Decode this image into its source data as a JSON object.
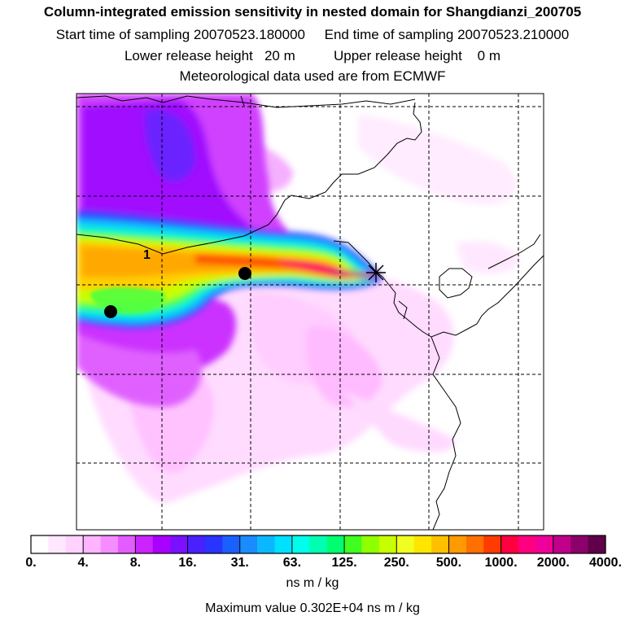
{
  "title": {
    "line1": "Column-integrated emission sensitivity in nested domain for Shangdianzi_200705",
    "line2": "Start time of sampling 20070523.180000     End time of sampling 20070523.210000",
    "line3": "Lower release height   20 m          Upper release height    0 m",
    "line4": "Meteorological data used are from ECMWF"
  },
  "map": {
    "contour_label": "1",
    "markers": [
      "receptor-star",
      "release-dot",
      "release-dot"
    ]
  },
  "colorbar": {
    "ticks": [
      "0.",
      "4.",
      "8.",
      "16.",
      "31.",
      "63.",
      "125.",
      "250.",
      "500.",
      "1000.",
      "2000.",
      "4000."
    ],
    "unit": "ns m / kg",
    "colors": [
      "#ffffff",
      "#ffe8ff",
      "#ffd2ff",
      "#ffb4ff",
      "#f58cff",
      "#e35cff",
      "#cc22ff",
      "#aa00ff",
      "#7a10ff",
      "#4a20ff",
      "#2a34ff",
      "#1a60ff",
      "#1a8cff",
      "#0bb8ff",
      "#00e0ff",
      "#00ffea",
      "#00ffb0",
      "#00ff70",
      "#40ff20",
      "#90ff00",
      "#c8ff00",
      "#f0ff20",
      "#ffe600",
      "#ffc000",
      "#ff9a00",
      "#ff7000",
      "#ff3c00",
      "#ff0040",
      "#ff0080",
      "#f0009a",
      "#c0008a",
      "#8c006c",
      "#60004a"
    ]
  },
  "max_value": "Maximum value  0.302E+04 ns m / kg"
}
